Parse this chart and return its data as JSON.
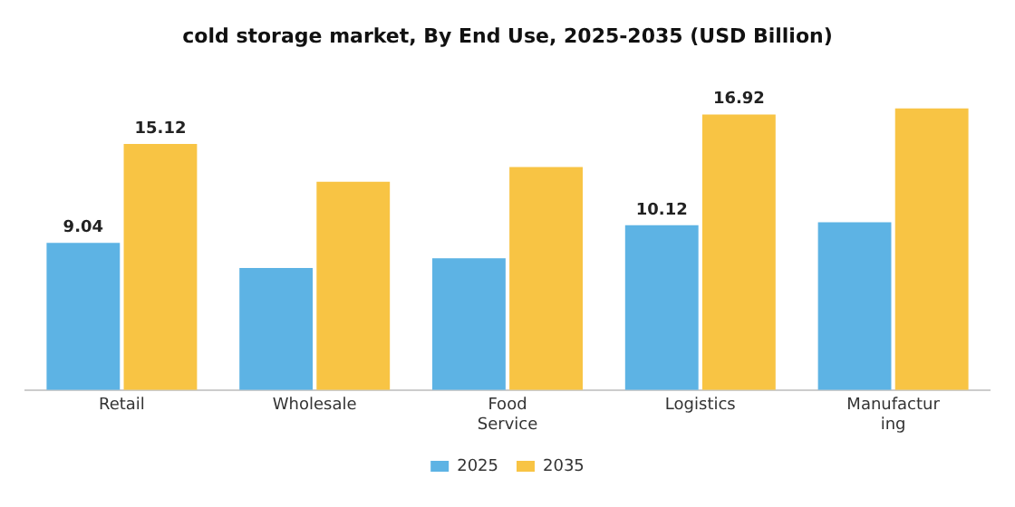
{
  "chart_data": {
    "type": "bar",
    "title": "cold storage market, By End Use, 2025-2035 (USD Billion)",
    "categories": [
      "Retail",
      "Wholesale",
      "Food Service",
      "Logistics",
      "Manufacturing"
    ],
    "series": [
      {
        "name": "2025",
        "color": "#5db3e4",
        "values": [
          9.04,
          7.5,
          8.1,
          10.12,
          10.3
        ],
        "value_labels": [
          "9.04",
          null,
          null,
          "10.12",
          null
        ]
      },
      {
        "name": "2035",
        "color": "#f8c444",
        "values": [
          15.12,
          12.8,
          13.7,
          16.92,
          17.3
        ],
        "value_labels": [
          "15.12",
          null,
          null,
          "16.92",
          null
        ]
      }
    ],
    "legend": "bottom",
    "grid": false
  }
}
